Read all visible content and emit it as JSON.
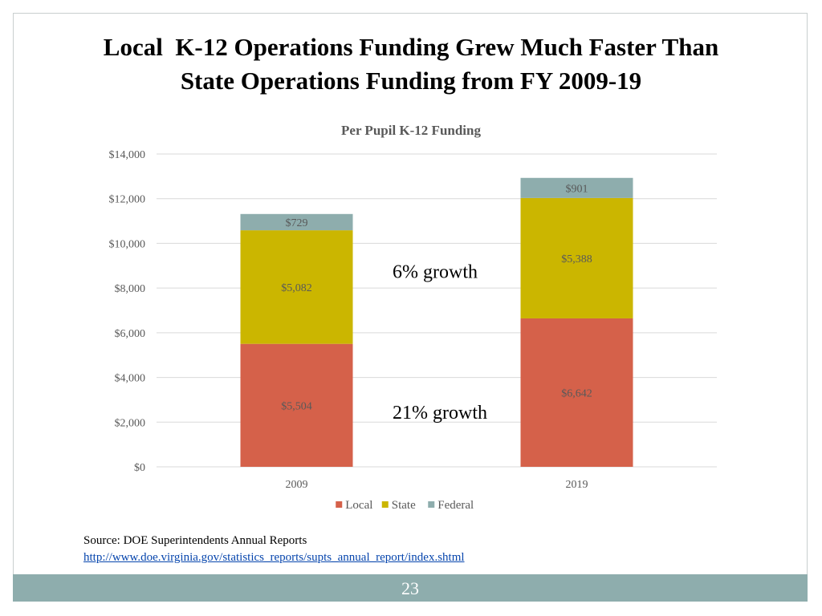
{
  "slide": {
    "title_line1": "Local  K-12 Operations Funding Grew Much Faster Than",
    "title_line2": "State Operations Funding from FY 2009-19",
    "source_label": "Source: DOE Superintendents Annual Reports",
    "source_url": "http://www.doe.virginia.gov/statistics_reports/supts_annual_report/index.shtml",
    "page_number": "23"
  },
  "chart_data": {
    "type": "bar",
    "stacked": true,
    "title": "Per Pupil K-12 Funding",
    "categories": [
      "2009",
      "2019"
    ],
    "series": [
      {
        "name": "Local",
        "values": [
          5504,
          6642
        ],
        "labels": [
          "$5,504",
          "$6,642"
        ],
        "color": "#d5614a"
      },
      {
        "name": "State",
        "values": [
          5082,
          5388
        ],
        "labels": [
          "$5,082",
          "$5,388"
        ],
        "color": "#cbb600"
      },
      {
        "name": "Federal",
        "values": [
          729,
          901
        ],
        "labels": [
          "$729",
          "$901"
        ],
        "color": "#8eadad"
      }
    ],
    "ylim": [
      0,
      14000
    ],
    "yticks": [
      0,
      2000,
      4000,
      6000,
      8000,
      10000,
      12000,
      14000
    ],
    "ytick_labels": [
      "$0",
      "$2,000",
      "$4,000",
      "$6,000",
      "$8,000",
      "$10,000",
      "$12,000",
      "$14,000"
    ],
    "xlabel": "",
    "ylabel": "",
    "grid": true,
    "legend_position": "bottom",
    "annotations": [
      {
        "text": "6% growth",
        "series": "State"
      },
      {
        "text": "21% growth",
        "series": "Local"
      }
    ],
    "colors": {
      "grid": "#d9d9d9",
      "axis_text": "#595959",
      "title_text": "#595959"
    }
  }
}
